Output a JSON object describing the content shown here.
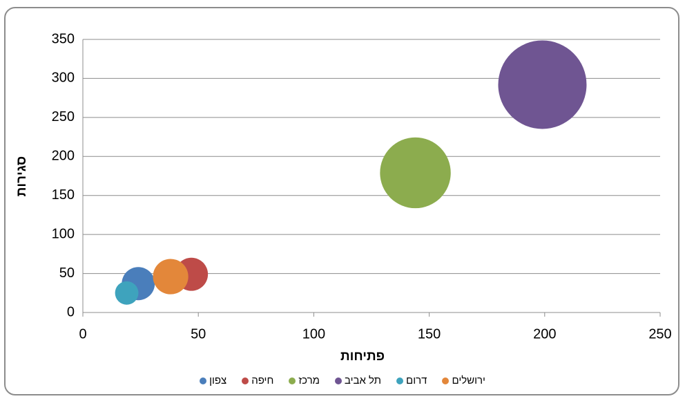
{
  "chart_data": {
    "type": "bubble",
    "x_label": "פתיחות",
    "y_label": "סגירות",
    "xlim": [
      0,
      250
    ],
    "xticks": [
      0,
      50,
      100,
      150,
      200,
      250
    ],
    "ylim": [
      0,
      350
    ],
    "yticks": [
      0,
      50,
      100,
      150,
      200,
      250,
      300,
      350
    ],
    "grid": true,
    "legend": "bottom",
    "series": [
      {
        "name": "צפון",
        "color": "#4a7ebb",
        "x": [
          24
        ],
        "y": [
          37
        ],
        "size": [
          14
        ]
      },
      {
        "name": "חיפה",
        "color": "#be4b48",
        "x": [
          47
        ],
        "y": [
          49
        ],
        "size": [
          14
        ]
      },
      {
        "name": "מרכז",
        "color": "#8cac4e",
        "x": [
          144
        ],
        "y": [
          179
        ],
        "size": [
          64
        ]
      },
      {
        "name": "תל אביב",
        "color": "#6f5592",
        "x": [
          199
        ],
        "y": [
          292
        ],
        "size": [
          100
        ]
      },
      {
        "name": "דרום",
        "color": "#3ea3bd",
        "x": [
          19
        ],
        "y": [
          25
        ],
        "size": [
          7
        ]
      },
      {
        "name": "ירושלים",
        "color": "#e3873a",
        "x": [
          38
        ],
        "y": [
          46
        ],
        "size": [
          16
        ]
      }
    ]
  }
}
